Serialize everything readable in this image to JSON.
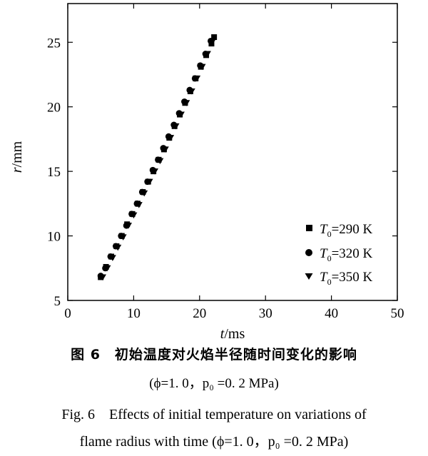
{
  "chart_data": {
    "type": "scatter",
    "xlabel": {
      "var": "t",
      "unit": "/ms"
    },
    "ylabel": {
      "var": "r",
      "unit": "/mm"
    },
    "xlim": [
      0,
      50
    ],
    "ylim": [
      5,
      28
    ],
    "xticks": [
      0,
      10,
      20,
      30,
      40,
      50
    ],
    "yticks": [
      5,
      10,
      15,
      20,
      25
    ],
    "grid": false,
    "legend_position": "bottom-right",
    "series": [
      {
        "name": {
          "sym": "T",
          "sub": "0",
          "rest": "=290 K"
        },
        "marker": "square",
        "x": [
          5.0,
          5.8,
          6.6,
          7.4,
          8.2,
          9.0,
          9.8,
          10.6,
          11.4,
          12.2,
          13.0,
          13.8,
          14.6,
          15.4,
          16.2,
          17.0,
          17.8,
          18.6,
          19.4,
          20.2,
          21.0,
          21.8,
          22.2
        ],
        "y": [
          6.8,
          7.6,
          8.4,
          9.2,
          10.0,
          10.9,
          11.7,
          12.5,
          13.4,
          14.2,
          15.0,
          15.9,
          16.7,
          17.6,
          18.5,
          19.4,
          20.3,
          21.2,
          22.2,
          23.1,
          24.0,
          24.9,
          25.4
        ]
      },
      {
        "name": {
          "sym": "T",
          "sub": "0",
          "rest": "=320 K"
        },
        "marker": "circle",
        "x": [
          5.0,
          5.7,
          6.5,
          7.3,
          8.1,
          8.9,
          9.7,
          10.5,
          11.3,
          12.1,
          12.9,
          13.7,
          14.5,
          15.3,
          16.1,
          16.9,
          17.7,
          18.5,
          19.3,
          20.1,
          20.9,
          21.7
        ],
        "y": [
          6.9,
          7.5,
          8.4,
          9.2,
          10.0,
          10.8,
          11.7,
          12.5,
          13.4,
          14.2,
          15.1,
          15.9,
          16.8,
          17.7,
          18.6,
          19.5,
          20.4,
          21.3,
          22.2,
          23.2,
          24.1,
          25.1
        ]
      },
      {
        "name": {
          "sym": "T",
          "sub": "0",
          "rest": "=350 K"
        },
        "marker": "triangle-down",
        "x": [
          5.3,
          6.0,
          6.8,
          7.6,
          8.4,
          9.2,
          10.0,
          10.8,
          11.6,
          12.4,
          13.2,
          14.0,
          14.8,
          15.6,
          16.4,
          17.2,
          18.0,
          18.8,
          19.6,
          20.4,
          21.2,
          22.0
        ],
        "y": [
          6.8,
          7.5,
          8.3,
          9.1,
          9.9,
          10.8,
          11.6,
          12.4,
          13.3,
          14.2,
          15.0,
          15.8,
          16.7,
          17.6,
          18.5,
          19.4,
          20.3,
          21.2,
          22.2,
          23.1,
          24.1,
          25.1
        ]
      }
    ]
  },
  "captions": {
    "cn_title": "图 6　初始温度对火焰半径随时间变化的影响",
    "cn_params": "(ϕ=1. 0，p₀ =0. 2 MPa)",
    "en_line1": "Fig. 6　Effects of initial temperature on variations of",
    "en_line2": "flame radius with time (ϕ=1. 0，p₀ =0. 2 MPa)"
  }
}
